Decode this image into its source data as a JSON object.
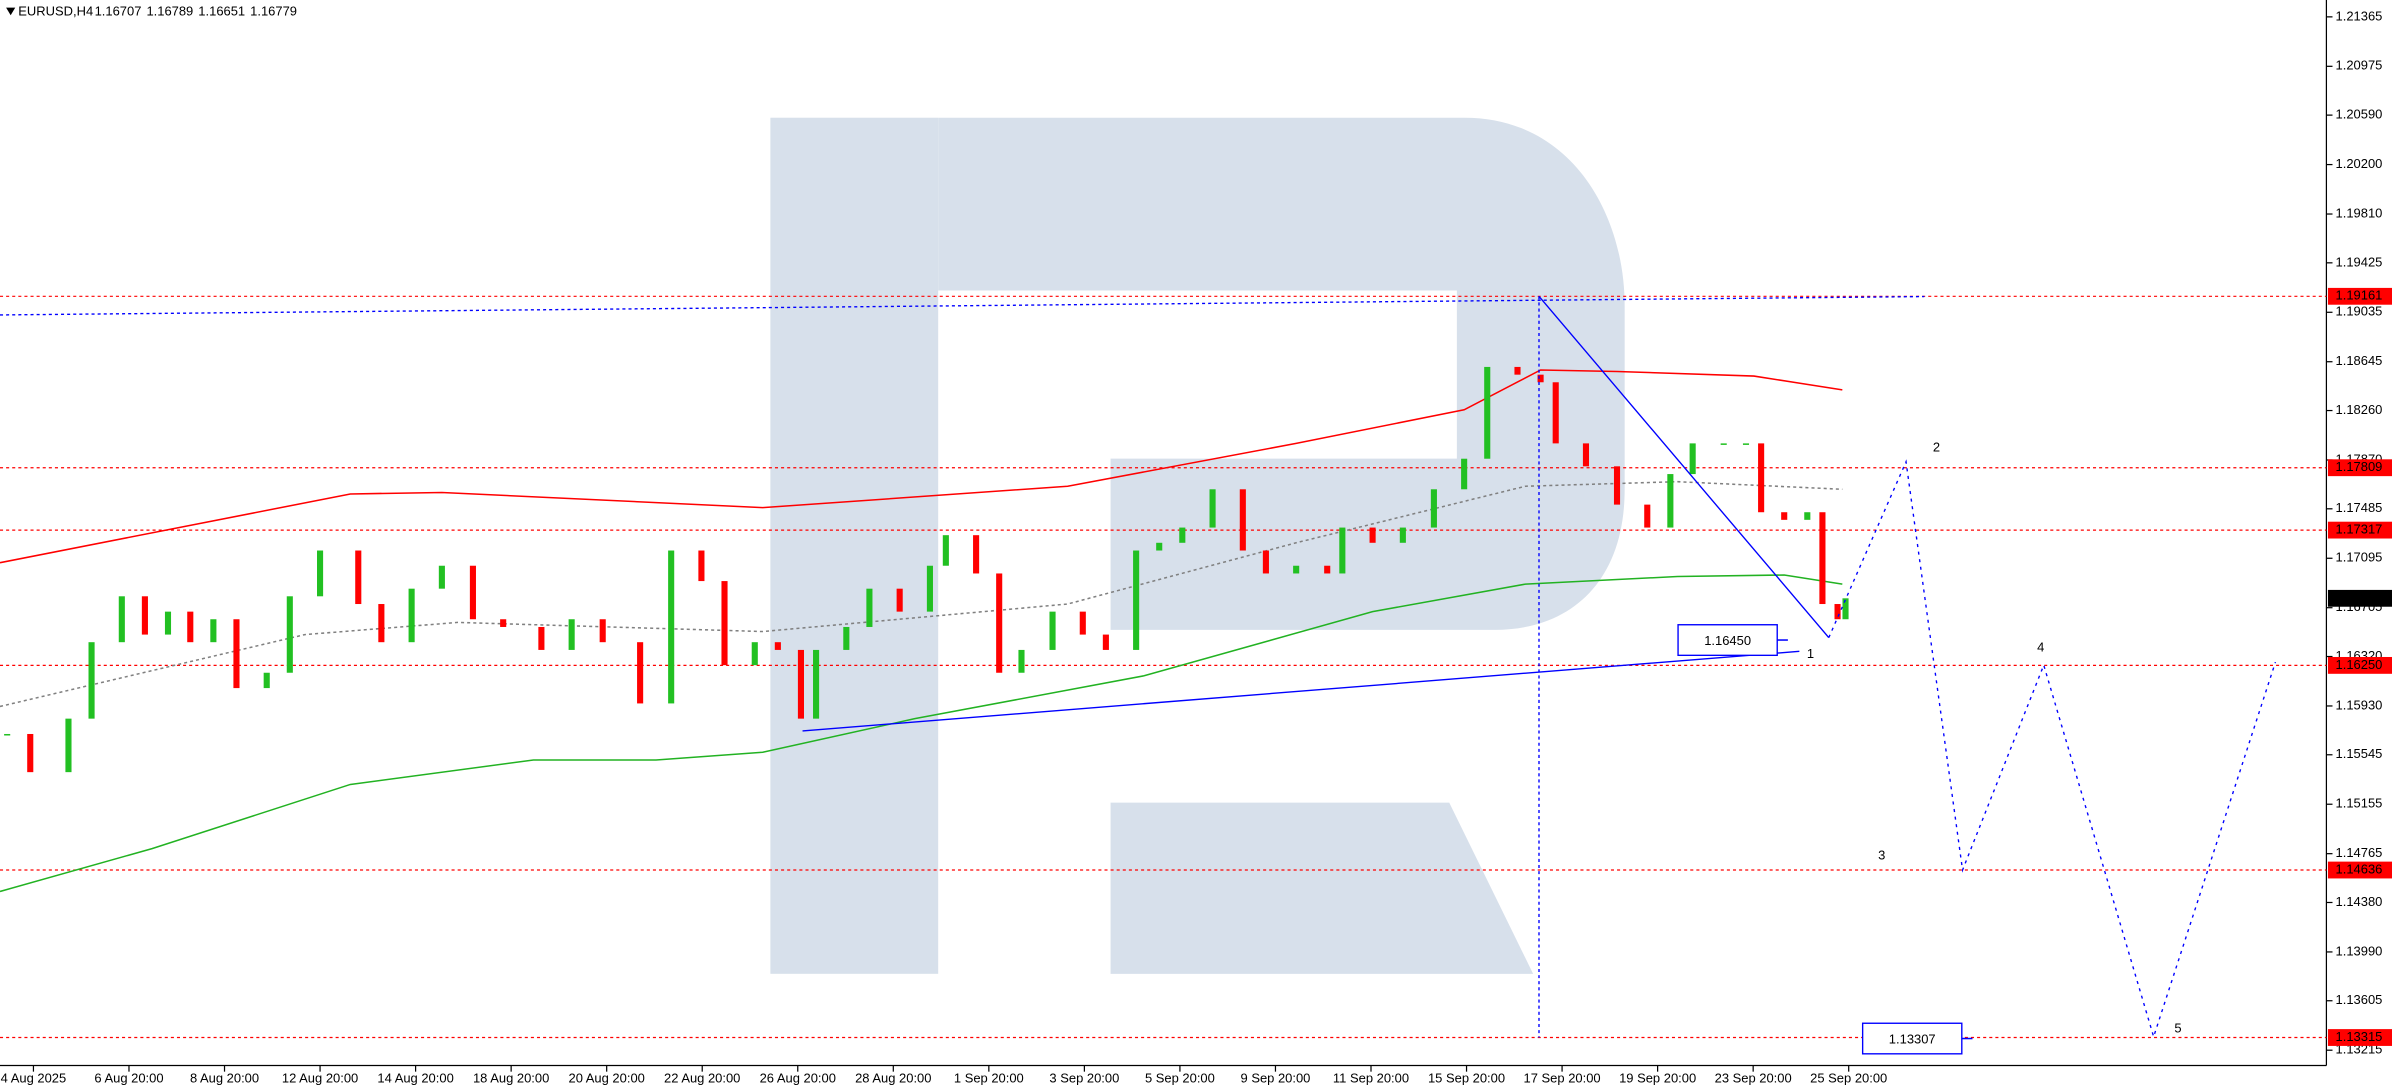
{
  "chart_data": {
    "type": "line",
    "title": "EURUSD,H4",
    "quote": [
      1.16707,
      1.16789,
      1.16651,
      1.16779
    ],
    "xlim": [
      -4.2,
      288
    ],
    "ylim": [
      1.13094,
      1.21498
    ],
    "grid": false,
    "xticks": [
      {
        "value": 0,
        "label": "4 Aug 2025"
      },
      {
        "value": 12,
        "label": "6 Aug 20:00"
      },
      {
        "value": 24,
        "label": "8 Aug 20:00"
      },
      {
        "value": 36,
        "label": "12 Aug 20:00"
      },
      {
        "value": 48,
        "label": "14 Aug 20:00"
      },
      {
        "value": 60,
        "label": "18 Aug 20:00"
      },
      {
        "value": 72,
        "label": "20 Aug 20:00"
      },
      {
        "value": 84,
        "label": "22 Aug 20:00"
      },
      {
        "value": 96,
        "label": "26 Aug 20:00"
      },
      {
        "value": 108,
        "label": "28 Aug 20:00"
      },
      {
        "value": 120,
        "label": "1 Sep 20:00"
      },
      {
        "value": 132,
        "label": "3 Sep 20:00"
      },
      {
        "value": 144,
        "label": "5 Sep 20:00"
      },
      {
        "value": 156,
        "label": "9 Sep 20:00"
      },
      {
        "value": 168,
        "label": "11 Sep 20:00"
      },
      {
        "value": 180,
        "label": "15 Sep 20:00"
      },
      {
        "value": 192,
        "label": "17 Sep 20:00"
      },
      {
        "value": 204,
        "label": "19 Sep 20:00"
      },
      {
        "value": 216,
        "label": "23 Sep 20:00"
      },
      {
        "value": 228,
        "label": "25 Sep 20:00"
      }
    ],
    "yticks": [
      1.21365,
      1.20975,
      {
        "value": 1.2059,
        "label": "1.20590"
      },
      {
        "value": 1.202,
        "label": "1.20200"
      },
      {
        "value": 1.1981,
        "label": "1.19810"
      },
      1.19425,
      1.19035,
      1.18645,
      {
        "value": 1.1826,
        "label": "1.18260"
      },
      {
        "value": 1.1787,
        "label": "1.17870"
      },
      1.17485,
      1.17095,
      1.16705,
      {
        "value": 1.1632,
        "label": "1.16320"
      },
      {
        "value": 1.1593,
        "label": "1.15930"
      },
      1.15545,
      1.15155,
      1.14765,
      {
        "value": 1.1438,
        "label": "1.14380"
      },
      {
        "value": 1.1399,
        "label": "1.13990"
      },
      1.13605,
      1.13215
    ],
    "series": [
      {
        "color": "#ff0000",
        "x": [
          -4.2,
          39.8,
          51.3,
          91.6,
          129.9,
          158.6,
          179.7,
          189.3,
          198.9,
          216.1,
          227.2
        ],
        "values": [
          1.1706,
          1.17602,
          1.17614,
          1.17494,
          1.17663,
          1.18001,
          1.18266,
          1.1858,
          1.18568,
          1.18532,
          1.18423
        ]
      },
      {
        "color": "#22b222",
        "x": [
          -4.2,
          14.9,
          39.8,
          62.8,
          78.2,
          91.6,
          110.7,
          139.5,
          168.2,
          187.4,
          206.5,
          219.9,
          227.2
        ],
        "values": [
          1.14467,
          1.14805,
          1.15311,
          1.15504,
          1.15504,
          1.15565,
          1.1583,
          1.16168,
          1.16674,
          1.16891,
          1.16951,
          1.16963,
          1.16891
        ]
      },
      {
        "color": "#808080",
        "style": "dotted",
        "x": [
          -4.2,
          34.1,
          53.3,
          91.6,
          129.9,
          158.6,
          187.4,
          206.5,
          227.2
        ],
        "values": [
          1.15926,
          1.16493,
          1.16589,
          1.16517,
          1.16734,
          1.17217,
          1.17663,
          1.17699,
          1.17639
        ]
      },
      {
        "style": "candles",
        "up_color": "#22c022",
        "down_color": "#ff0000",
        "x": [
          -3.3,
          -0.4,
          4.4,
          7.3,
          11.1,
          14,
          16.9,
          19.7,
          22.6,
          25.5,
          29.3,
          32.2,
          36,
          40.8,
          43.7,
          47.5,
          51.3,
          55.2,
          59,
          63.8,
          67.6,
          71.5,
          76.2,
          80.1,
          83.9,
          86.8,
          90.6,
          93.5,
          96.4,
          98.3,
          102.1,
          105,
          108.8,
          112.6,
          114.6,
          118.4,
          121.3,
          124.1,
          128,
          131.8,
          134.7,
          138.5,
          141.4,
          144.3,
          148.1,
          151.9,
          154.8,
          158.6,
          162.5,
          164.4,
          168.2,
          172,
          175.9,
          179.7,
          182.6,
          186.4,
          189.3,
          191.2,
          195,
          198.9,
          202.7,
          205.6,
          208.4,
          212.3,
          215.1,
          217,
          219.9,
          222.8,
          224.7,
          226.6,
          227.6
        ],
        "values": [
          1.15709,
          1.15408,
          1.1583,
          1.16433,
          1.16795,
          1.16493,
          1.16674,
          1.16433,
          1.16614,
          1.16071,
          1.16192,
          1.16795,
          1.17156,
          1.16734,
          1.16433,
          1.16855,
          1.17036,
          1.16614,
          1.16553,
          1.16372,
          1.16614,
          1.16433,
          1.1595,
          1.17156,
          1.16915,
          1.16252,
          1.16433,
          1.16372,
          1.1583,
          1.16372,
          1.16553,
          1.16855,
          1.16674,
          1.17036,
          1.17277,
          1.16975,
          1.16192,
          1.16372,
          1.16674,
          1.16493,
          1.16372,
          1.17156,
          1.17217,
          1.17337,
          1.17639,
          1.17156,
          1.16975,
          1.17036,
          1.16975,
          1.17337,
          1.17217,
          1.17337,
          1.17639,
          1.1788,
          1.18604,
          1.18543,
          1.18483,
          1.18001,
          1.1782,
          1.17518,
          1.17337,
          1.17759,
          1.18001,
          1.18001,
          1.18001,
          1.17458,
          1.17398,
          1.17458,
          1.16734,
          1.16614,
          1.16779
        ]
      }
    ],
    "trendlines": [
      {
        "color": "#0000ff",
        "x": [
          189.1,
          225.5
        ],
        "values": [
          1.19161,
          1.16469
        ]
      },
      {
        "color": "#0000ff",
        "x": [
          96.6,
          221.8
        ],
        "values": [
          1.15733,
          1.16361
        ]
      },
      {
        "color": "#0000ff",
        "style": "dotted",
        "x": [
          -4.2,
          237.5
        ],
        "values": [
          1.19014,
          1.19159
        ]
      },
      {
        "color": "#0000ff",
        "style": "dotted",
        "x": [
          189.1,
          189.1
        ],
        "values": [
          1.19161,
          1.13315
        ]
      }
    ],
    "forecast": {
      "color": "#0000ff",
      "x": [
        225.5,
        235.2,
        242.3,
        252.5,
        266.3,
        281.6
      ],
      "values": [
        1.16469,
        1.17856,
        1.14636,
        1.16252,
        1.13321,
        1.16276
      ],
      "labels": [
        "1",
        "2",
        "3",
        "4",
        "5"
      ]
    },
    "levels": [
      1.19161,
      1.17809,
      1.17317,
      {
        "value": 1.1625,
        "label": "1.16250"
      },
      1.14636,
      1.13315
    ],
    "level_color": "#ff0000",
    "current_price": 1.16779,
    "price_labels": [
      {
        "value": 1.1645,
        "label": "1.16450"
      },
      {
        "value": 1.13307,
        "label": "1.13307"
      }
    ]
  }
}
